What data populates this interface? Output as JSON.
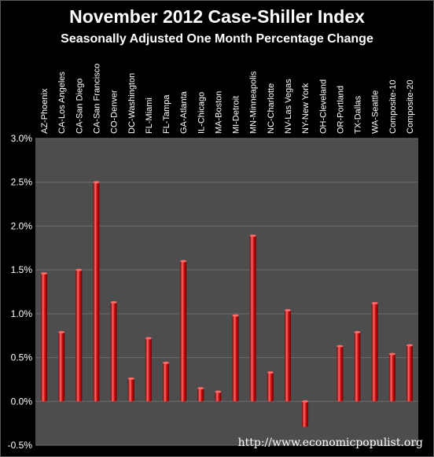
{
  "title": "November 2012 Case-Shiller Index",
  "subtitle": "Seasonally Adjusted One Month Percentage Change",
  "watermark": "http://www.economicpopulist.org",
  "colors": {
    "background": "#000000",
    "plot_area": "#4d4d4d",
    "grid": "#6e6e6e",
    "bar": "#c91010",
    "bar_highlight": "#ff6a6a",
    "text": "#ffffff"
  },
  "chart_data": {
    "type": "bar",
    "title": "November 2012 Case-Shiller Index",
    "subtitle": "Seasonally Adjusted One Month Percentage Change",
    "categories": [
      "AZ-Phoenix",
      "CA-Los Angeles",
      "CA-San Diego",
      "CA-San Francisco",
      "CO-Denver",
      "DC-Washington",
      "FL-Miami",
      "FL-Tampa",
      "GA-Atlanta",
      "IL-Chicago",
      "MA-Boston",
      "MI-Detroit",
      "MN-Minneapolis",
      "NC-Charlotte",
      "NV-Las Vegas",
      "NY-New York",
      "OH-Cleveland",
      "OR-Portland",
      "TX-Dallas",
      "WA-Seattle",
      "Composite-10",
      "Composite-20"
    ],
    "values": [
      1.46,
      0.79,
      1.5,
      2.5,
      1.13,
      0.26,
      0.72,
      0.44,
      1.6,
      0.15,
      0.11,
      0.98,
      1.89,
      0.33,
      1.04,
      -0.29,
      0.0,
      0.63,
      0.79,
      1.12,
      0.54,
      0.64
    ],
    "ylim": [
      -0.5,
      3.0
    ],
    "yticks": [
      "-0.5%",
      "0.0%",
      "0.5%",
      "1.0%",
      "1.5%",
      "2.0%",
      "2.5%",
      "3.0%"
    ],
    "ytick_values": [
      -0.5,
      0.0,
      0.5,
      1.0,
      1.5,
      2.0,
      2.5,
      3.0
    ],
    "grid": true,
    "legend": "none",
    "category_axis": "top, rotated vertical"
  }
}
